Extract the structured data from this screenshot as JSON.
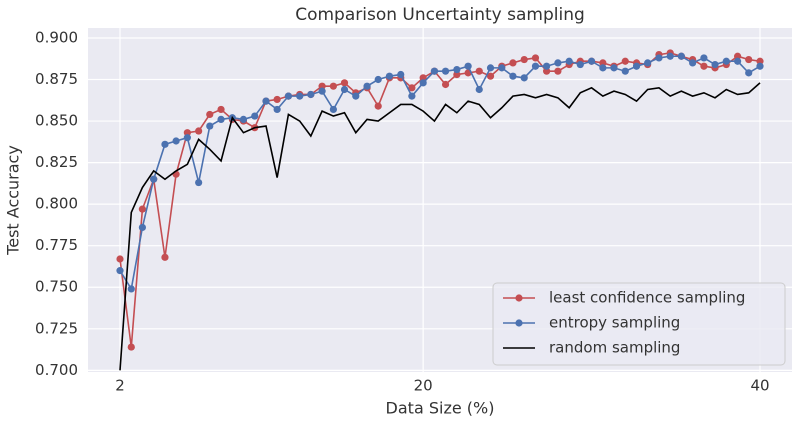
{
  "chart_data": {
    "type": "line",
    "title": "Comparison Uncertainty sampling",
    "xlabel": "Data Size (%)",
    "ylabel": "Test Accuracy",
    "x": [
      2,
      2.67,
      3.33,
      4,
      4.67,
      5.33,
      6,
      6.67,
      7.33,
      8,
      8.67,
      9.33,
      10,
      10.67,
      11.33,
      12,
      12.67,
      13.33,
      14,
      14.67,
      15.33,
      16,
      16.67,
      17.33,
      18,
      18.67,
      19.33,
      20,
      20.67,
      21.33,
      22,
      22.67,
      23.33,
      24,
      24.67,
      25.33,
      26,
      26.67,
      27.33,
      28,
      28.67,
      29.33,
      30,
      30.67,
      31.33,
      32,
      32.67,
      33.33,
      34,
      34.67,
      35.33,
      36,
      36.67,
      37.33,
      38,
      38.67,
      39.33,
      40
    ],
    "series": [
      {
        "name": "least confidence sampling",
        "color": "#c44e52",
        "marker": true,
        "values": [
          0.767,
          0.714,
          0.797,
          0.815,
          0.768,
          0.818,
          0.843,
          0.844,
          0.854,
          0.857,
          0.851,
          0.85,
          0.846,
          0.862,
          0.863,
          0.865,
          0.866,
          0.866,
          0.871,
          0.871,
          0.873,
          0.867,
          0.87,
          0.859,
          0.876,
          0.876,
          0.87,
          0.876,
          0.88,
          0.872,
          0.878,
          0.879,
          0.88,
          0.877,
          0.883,
          0.885,
          0.887,
          0.888,
          0.88,
          0.88,
          0.884,
          0.886,
          0.886,
          0.885,
          0.883,
          0.886,
          0.885,
          0.884,
          0.89,
          0.891,
          0.889,
          0.887,
          0.883,
          0.882,
          0.884,
          0.889,
          0.887,
          0.886
        ]
      },
      {
        "name": "entropy sampling",
        "color": "#4c72b0",
        "marker": true,
        "values": [
          0.76,
          0.749,
          0.786,
          0.815,
          0.836,
          0.838,
          0.84,
          0.813,
          0.847,
          0.851,
          0.852,
          0.851,
          0.853,
          0.862,
          0.857,
          0.865,
          0.865,
          0.866,
          0.868,
          0.857,
          0.869,
          0.865,
          0.871,
          0.875,
          0.877,
          0.878,
          0.865,
          0.873,
          0.88,
          0.88,
          0.881,
          0.883,
          0.869,
          0.882,
          0.882,
          0.877,
          0.876,
          0.883,
          0.883,
          0.885,
          0.886,
          0.884,
          0.886,
          0.882,
          0.882,
          0.88,
          0.883,
          0.885,
          0.888,
          0.889,
          0.889,
          0.885,
          0.888,
          0.884,
          0.886,
          0.886,
          0.879,
          0.883
        ]
      },
      {
        "name": "random sampling",
        "color": "#000000",
        "marker": false,
        "values": [
          0.7,
          0.795,
          0.81,
          0.82,
          0.815,
          0.82,
          0.824,
          0.839,
          0.833,
          0.826,
          0.852,
          0.843,
          0.846,
          0.847,
          0.816,
          0.854,
          0.85,
          0.841,
          0.856,
          0.853,
          0.855,
          0.843,
          0.851,
          0.85,
          0.855,
          0.86,
          0.86,
          0.856,
          0.85,
          0.86,
          0.855,
          0.862,
          0.86,
          0.852,
          0.858,
          0.865,
          0.866,
          0.864,
          0.866,
          0.864,
          0.858,
          0.867,
          0.87,
          0.865,
          0.868,
          0.866,
          0.862,
          0.869,
          0.87,
          0.865,
          0.868,
          0.865,
          0.867,
          0.864,
          0.869,
          0.866,
          0.867,
          0.873
        ]
      }
    ],
    "xlim": [
      0.1,
      41.9
    ],
    "ylim": [
      0.699,
      0.906
    ],
    "xticks": [
      2,
      20,
      40
    ],
    "yticks": [
      {
        "value": 0.7,
        "label": "0.700"
      },
      {
        "value": 0.725,
        "label": "0.725"
      },
      {
        "value": 0.75,
        "label": "0.750"
      },
      {
        "value": 0.775,
        "label": "0.775"
      },
      {
        "value": 0.8,
        "label": "0.800"
      },
      {
        "value": 0.825,
        "label": "0.825"
      },
      {
        "value": 0.85,
        "label": "0.850"
      },
      {
        "value": 0.875,
        "label": "0.875"
      },
      {
        "value": 0.9,
        "label": "0.900"
      }
    ],
    "grid": true,
    "legend": "lower right"
  }
}
